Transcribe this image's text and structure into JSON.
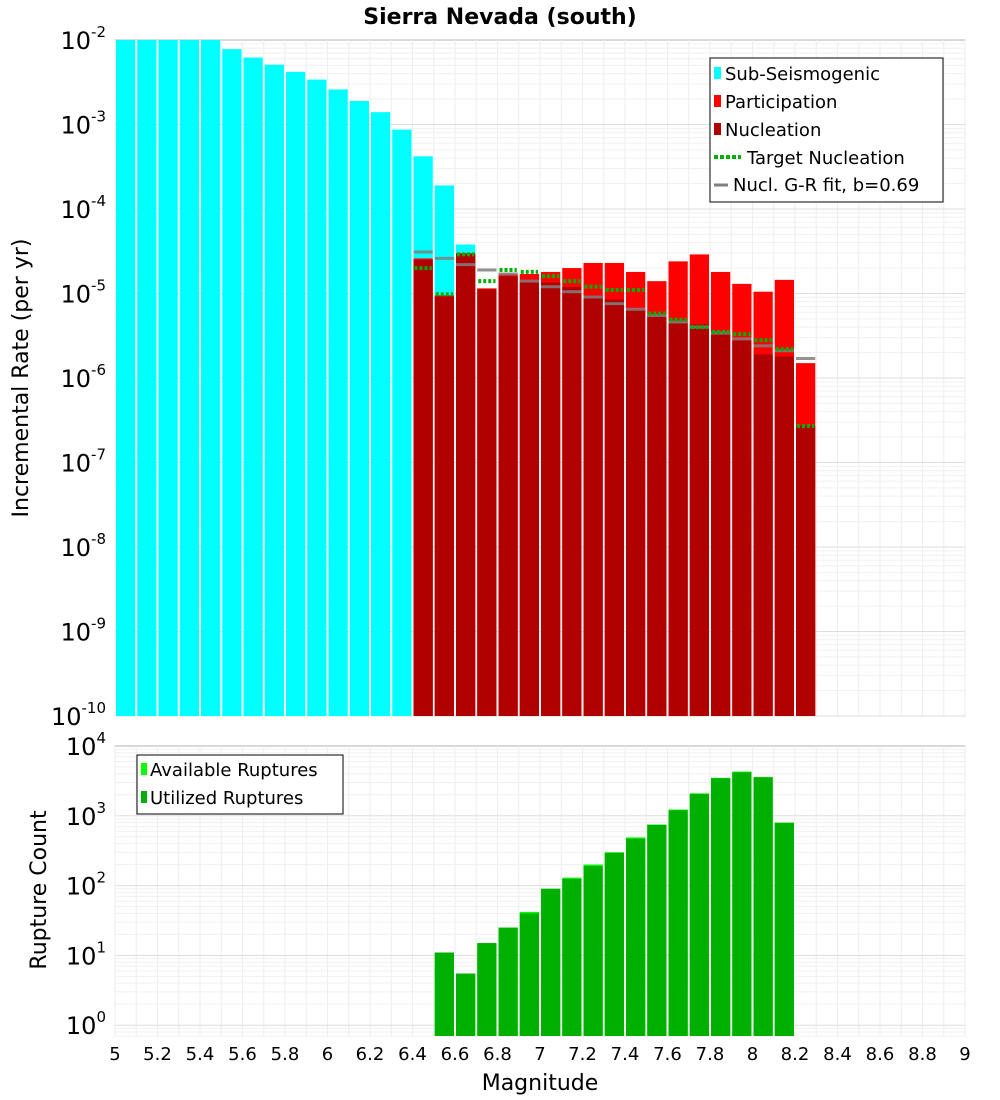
{
  "chart_data": [
    {
      "type": "bar",
      "title": "Sierra Nevada (south)",
      "xlabel": "Magnitude",
      "ylabel": "Incremental Rate (per yr)",
      "yscale": "log",
      "xlim": [
        5,
        9
      ],
      "ylim": [
        1e-10,
        0.01
      ],
      "grid": true,
      "legend_placement": "top-right",
      "legend": [
        "Sub-Seismogenic",
        "Participation",
        "Nucleation",
        "Target Nucleation",
        "Nucl. G-R fit, b=0.69"
      ],
      "colors": {
        "sub_seismogenic": "#00ffff",
        "participation": "#ff0000",
        "nucleation": "#b00000",
        "target": "#00b000",
        "gr_fit": "#808080"
      },
      "x": [
        5.05,
        5.15,
        5.25,
        5.35,
        5.45,
        5.55,
        5.65,
        5.75,
        5.85,
        5.95,
        6.05,
        6.15,
        6.25,
        6.35,
        6.45,
        6.55,
        6.65,
        6.75,
        6.85,
        6.95,
        7.05,
        7.15,
        7.25,
        7.35,
        7.45,
        7.55,
        7.65,
        7.75,
        7.85,
        7.95,
        8.05,
        8.15,
        8.25
      ],
      "series": [
        {
          "name": "Sub-Seismogenic",
          "values": [
            0.01,
            0.01,
            0.01,
            0.01,
            0.01,
            0.0078,
            0.0062,
            0.0051,
            0.0042,
            0.0034,
            0.0026,
            0.0019,
            0.0014,
            0.00087,
            0.00042,
            0.00019,
            3.8e-05,
            0,
            0,
            0,
            0,
            0,
            0,
            0,
            0,
            0,
            0,
            0,
            0,
            0,
            0,
            0,
            0
          ]
        },
        {
          "name": "Participation",
          "values": [
            0,
            0,
            0,
            0,
            0,
            0,
            0,
            0,
            0,
            0,
            0,
            0,
            0,
            0,
            2.6e-05,
            9.5e-06,
            3e-05,
            1.15e-05,
            1.7e-05,
            1.7e-05,
            1.8e-05,
            2e-05,
            2.3e-05,
            2.3e-05,
            1.8e-05,
            1.4e-05,
            2.4e-05,
            2.9e-05,
            1.8e-05,
            1.3e-05,
            1.05e-05,
            1.45e-05,
            1.5e-06
          ]
        },
        {
          "name": "Nucleation",
          "values": [
            0,
            0,
            0,
            0,
            0,
            0,
            0,
            0,
            0,
            0,
            0,
            0,
            0,
            0,
            2.5e-05,
            9.2e-06,
            2.9e-05,
            1.12e-05,
            1.6e-05,
            1.4e-05,
            1.35e-05,
            1.2e-05,
            9.5e-06,
            8.5e-06,
            6.5e-06,
            5.5e-06,
            4.5e-06,
            4.3e-06,
            3.5e-06,
            2.8e-06,
            1.9e-06,
            1.8e-06,
            2.7e-07
          ]
        },
        {
          "name": "Target Nucleation",
          "values": [
            null,
            null,
            null,
            null,
            null,
            null,
            null,
            null,
            null,
            null,
            null,
            null,
            null,
            null,
            2e-05,
            9.8e-06,
            2.9e-05,
            1.4e-05,
            1.9e-05,
            1.8e-05,
            1.6e-05,
            1.4e-05,
            1.2e-05,
            1.1e-05,
            1.1e-05,
            5.8e-06,
            4.9e-06,
            4e-06,
            3.5e-06,
            3.3e-06,
            2.8e-06,
            2.2e-06,
            2.7e-07
          ]
        },
        {
          "name": "Nucl. G-R fit, b=0.69",
          "values": [
            null,
            null,
            null,
            null,
            null,
            null,
            null,
            null,
            null,
            null,
            null,
            null,
            null,
            null,
            3.1e-05,
            2.6e-05,
            2.2e-05,
            1.9e-05,
            1.7e-05,
            1.4e-05,
            1.2e-05,
            1.05e-05,
            9.1e-06,
            7.6e-06,
            6.5e-06,
            5.5e-06,
            4.6e-06,
            4e-06,
            3.4e-06,
            2.9e-06,
            2.4e-06,
            2.1e-06,
            1.7e-06
          ]
        }
      ]
    },
    {
      "type": "bar",
      "xlabel": "Magnitude",
      "ylabel": "Rupture Count",
      "yscale": "log",
      "xlim": [
        5,
        9
      ],
      "ylim": [
        0.7,
        10000
      ],
      "grid": true,
      "legend_placement": "top-left",
      "legend": [
        "Available Ruptures",
        "Utilized Ruptures"
      ],
      "colors": {
        "available": "#00ff00",
        "utilized": "#00b000"
      },
      "x": [
        6.55,
        6.65,
        6.75,
        6.85,
        6.95,
        7.05,
        7.15,
        7.25,
        7.35,
        7.45,
        7.55,
        7.65,
        7.75,
        7.85,
        7.95,
        8.05,
        8.15
      ],
      "series": [
        {
          "name": "Available Ruptures",
          "values": [
            11,
            5.5,
            15,
            25,
            42,
            90,
            130,
            200,
            300,
            490,
            750,
            1230,
            2100,
            3500,
            4300,
            3600,
            800
          ]
        },
        {
          "name": "Utilized Ruptures",
          "values": [
            11,
            5.5,
            15,
            25,
            40,
            90,
            125,
            190,
            295,
            470,
            740,
            1200,
            2050,
            3450,
            4200,
            3550,
            790
          ]
        }
      ]
    }
  ],
  "x_ticks": [
    "5",
    "5.2",
    "5.4",
    "5.6",
    "5.8",
    "6",
    "6.2",
    "6.4",
    "6.6",
    "6.8",
    "7",
    "7.2",
    "7.4",
    "7.6",
    "7.8",
    "8",
    "8.2",
    "8.4",
    "8.6",
    "8.8",
    "9"
  ],
  "top_y_ticks": [
    {
      "base": "10",
      "exp": "-2"
    },
    {
      "base": "10",
      "exp": "-3"
    },
    {
      "base": "10",
      "exp": "-4"
    },
    {
      "base": "10",
      "exp": "-5"
    },
    {
      "base": "10",
      "exp": "-6"
    },
    {
      "base": "10",
      "exp": "-7"
    },
    {
      "base": "10",
      "exp": "-8"
    },
    {
      "base": "10",
      "exp": "-9"
    },
    {
      "base": "10",
      "exp": "-10"
    }
  ],
  "bottom_y_ticks": [
    {
      "base": "10",
      "exp": "4"
    },
    {
      "base": "10",
      "exp": "3"
    },
    {
      "base": "10",
      "exp": "2"
    },
    {
      "base": "10",
      "exp": "1"
    },
    {
      "base": "10",
      "exp": "0"
    }
  ]
}
